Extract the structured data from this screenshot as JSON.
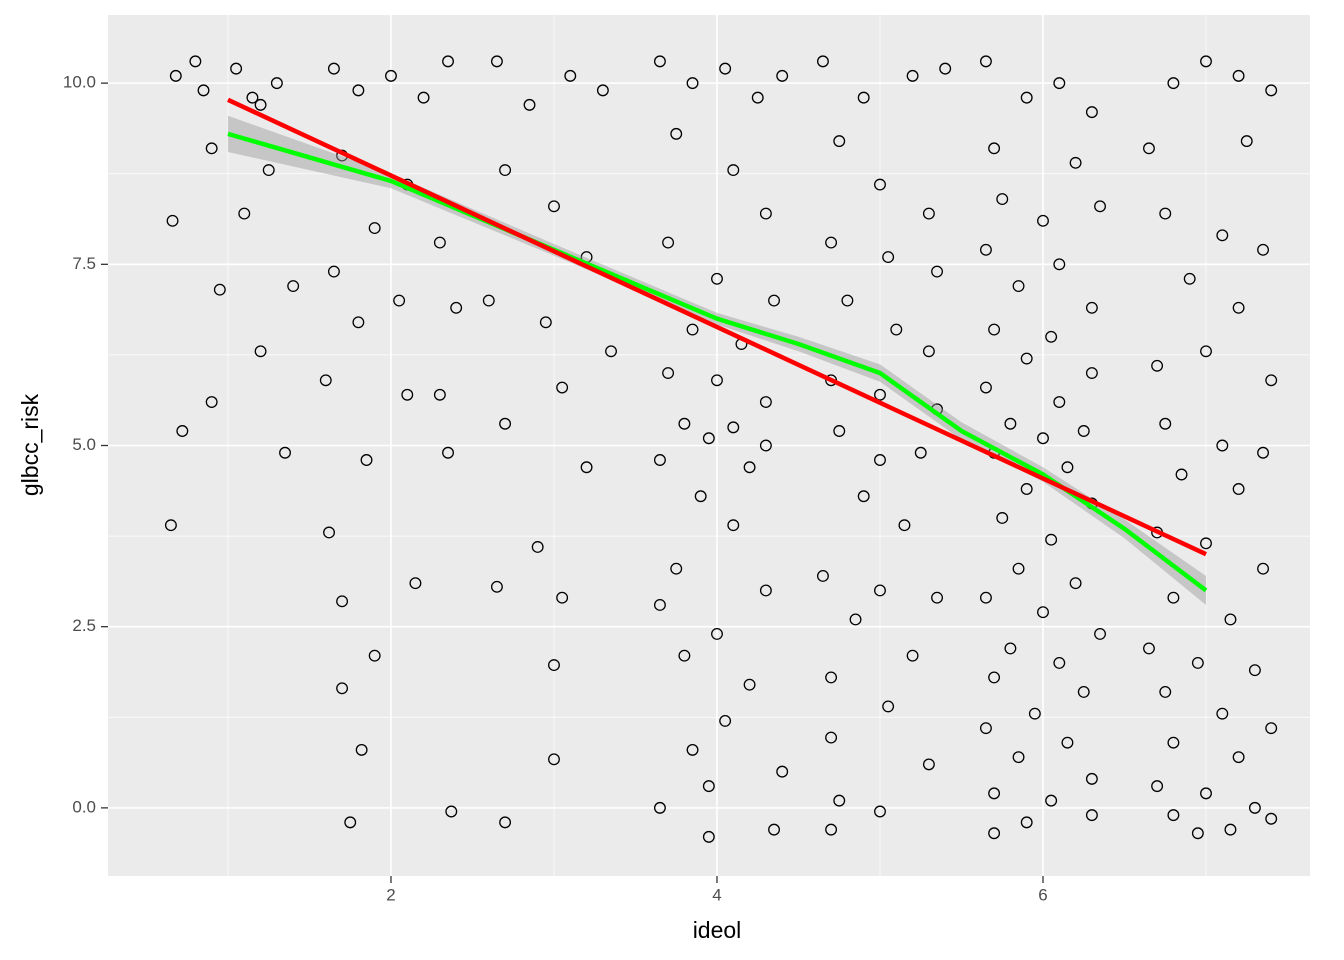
{
  "chart_data": {
    "type": "scatter",
    "x_label": "ideol",
    "y_label": "glbcc_risk",
    "xlim": [
      0.264,
      7.638
    ],
    "ylim": [
      -0.94,
      10.94
    ],
    "xticks": [
      2,
      4,
      6
    ],
    "yticks": [
      {
        "value": 0,
        "label": "0.0"
      },
      2.5,
      {
        "value": 5,
        "label": "5.0"
      },
      7.5,
      {
        "value": 10,
        "label": "10.0"
      }
    ],
    "minor_xticks": [
      1,
      3,
      5,
      7
    ],
    "minor_yticks": [
      1.25,
      3.75,
      6.25,
      8.75
    ],
    "grid": true,
    "point_color": "#000000",
    "points": [
      [
        0.68,
        10.1
      ],
      [
        0.85,
        9.9
      ],
      [
        1.05,
        10.2
      ],
      [
        1.2,
        9.7
      ],
      [
        1.3,
        10.0
      ],
      [
        0.9,
        9.1
      ],
      [
        1.1,
        8.2
      ],
      [
        0.66,
        8.1
      ],
      [
        1.4,
        7.2
      ],
      [
        0.95,
        7.15
      ],
      [
        1.2,
        6.3
      ],
      [
        0.9,
        5.6
      ],
      [
        0.72,
        5.2
      ],
      [
        0.65,
        3.9
      ],
      [
        1.35,
        4.9
      ],
      [
        1.15,
        9.8
      ],
      [
        0.8,
        10.3
      ],
      [
        1.25,
        8.8
      ],
      [
        1.65,
        10.2
      ],
      [
        1.8,
        9.9
      ],
      [
        2.0,
        10.1
      ],
      [
        2.2,
        9.8
      ],
      [
        2.35,
        10.3
      ],
      [
        1.7,
        9.0
      ],
      [
        2.1,
        8.6
      ],
      [
        1.9,
        8.0
      ],
      [
        2.3,
        7.8
      ],
      [
        1.65,
        7.4
      ],
      [
        2.05,
        7.0
      ],
      [
        1.8,
        6.7
      ],
      [
        2.4,
        6.9
      ],
      [
        1.6,
        5.9
      ],
      [
        2.1,
        5.7
      ],
      [
        1.85,
        4.8
      ],
      [
        2.35,
        4.9
      ],
      [
        2.3,
        5.7
      ],
      [
        1.62,
        3.8
      ],
      [
        2.15,
        3.1
      ],
      [
        1.7,
        2.85
      ],
      [
        1.9,
        2.1
      ],
      [
        1.7,
        1.65
      ],
      [
        1.82,
        0.8
      ],
      [
        1.75,
        -0.2
      ],
      [
        2.37,
        -0.05
      ],
      [
        2.65,
        10.3
      ],
      [
        2.85,
        9.7
      ],
      [
        3.1,
        10.1
      ],
      [
        3.3,
        9.9
      ],
      [
        2.7,
        8.8
      ],
      [
        3.0,
        8.3
      ],
      [
        3.2,
        7.6
      ],
      [
        2.6,
        7.0
      ],
      [
        2.95,
        6.7
      ],
      [
        3.35,
        6.3
      ],
      [
        3.05,
        5.8
      ],
      [
        2.7,
        5.3
      ],
      [
        3.2,
        4.7
      ],
      [
        2.9,
        3.6
      ],
      [
        3.05,
        2.9
      ],
      [
        2.65,
        3.05
      ],
      [
        3.0,
        1.97
      ],
      [
        3.0,
        0.67
      ],
      [
        2.7,
        -0.2
      ],
      [
        3.65,
        10.3
      ],
      [
        3.85,
        10.0
      ],
      [
        4.05,
        10.2
      ],
      [
        4.25,
        9.8
      ],
      [
        4.4,
        10.1
      ],
      [
        3.75,
        9.3
      ],
      [
        4.1,
        8.8
      ],
      [
        4.3,
        8.2
      ],
      [
        3.7,
        7.8
      ],
      [
        4.0,
        7.3
      ],
      [
        4.35,
        7.0
      ],
      [
        3.85,
        6.6
      ],
      [
        4.15,
        6.4
      ],
      [
        3.7,
        6.0
      ],
      [
        4.0,
        5.9
      ],
      [
        4.3,
        5.6
      ],
      [
        3.8,
        5.3
      ],
      [
        3.95,
        5.1
      ],
      [
        4.1,
        5.25
      ],
      [
        4.3,
        5.0
      ],
      [
        3.65,
        4.8
      ],
      [
        4.2,
        4.7
      ],
      [
        3.9,
        4.3
      ],
      [
        4.1,
        3.9
      ],
      [
        3.75,
        3.3
      ],
      [
        4.3,
        3.0
      ],
      [
        3.65,
        2.8
      ],
      [
        4.0,
        2.4
      ],
      [
        3.8,
        2.1
      ],
      [
        4.2,
        1.7
      ],
      [
        4.05,
        1.2
      ],
      [
        3.85,
        0.8
      ],
      [
        4.4,
        0.5
      ],
      [
        3.95,
        0.3
      ],
      [
        3.65,
        0.0
      ],
      [
        3.95,
        -0.4
      ],
      [
        4.35,
        -0.3
      ],
      [
        4.65,
        10.3
      ],
      [
        4.9,
        9.8
      ],
      [
        5.2,
        10.1
      ],
      [
        5.4,
        10.2
      ],
      [
        4.75,
        9.2
      ],
      [
        5.0,
        8.6
      ],
      [
        5.3,
        8.2
      ],
      [
        4.7,
        7.8
      ],
      [
        5.05,
        7.6
      ],
      [
        5.35,
        7.4
      ],
      [
        4.8,
        7.0
      ],
      [
        5.1,
        6.6
      ],
      [
        5.3,
        6.3
      ],
      [
        4.7,
        5.9
      ],
      [
        5.0,
        5.7
      ],
      [
        5.35,
        5.5
      ],
      [
        4.75,
        5.2
      ],
      [
        5.0,
        4.8
      ],
      [
        5.25,
        4.9
      ],
      [
        4.9,
        4.3
      ],
      [
        5.15,
        3.9
      ],
      [
        4.65,
        3.2
      ],
      [
        5.0,
        3.0
      ],
      [
        5.35,
        2.9
      ],
      [
        4.85,
        2.6
      ],
      [
        5.2,
        2.1
      ],
      [
        4.7,
        1.8
      ],
      [
        5.05,
        1.4
      ],
      [
        4.7,
        0.97
      ],
      [
        5.3,
        0.6
      ],
      [
        4.75,
        0.1
      ],
      [
        5.0,
        -0.05
      ],
      [
        4.7,
        -0.3
      ],
      [
        5.65,
        10.3
      ],
      [
        5.9,
        9.8
      ],
      [
        6.1,
        10.0
      ],
      [
        6.3,
        9.6
      ],
      [
        5.7,
        9.1
      ],
      [
        6.2,
        8.9
      ],
      [
        5.75,
        8.4
      ],
      [
        6.0,
        8.1
      ],
      [
        6.35,
        8.3
      ],
      [
        5.65,
        7.7
      ],
      [
        6.1,
        7.5
      ],
      [
        5.85,
        7.2
      ],
      [
        6.3,
        6.9
      ],
      [
        5.7,
        6.6
      ],
      [
        6.05,
        6.5
      ],
      [
        5.9,
        6.2
      ],
      [
        6.3,
        6.0
      ],
      [
        5.65,
        5.8
      ],
      [
        6.1,
        5.6
      ],
      [
        5.8,
        5.3
      ],
      [
        6.0,
        5.1
      ],
      [
        6.25,
        5.2
      ],
      [
        5.7,
        4.9
      ],
      [
        6.15,
        4.7
      ],
      [
        5.9,
        4.4
      ],
      [
        6.3,
        4.2
      ],
      [
        5.75,
        4.0
      ],
      [
        6.05,
        3.7
      ],
      [
        5.85,
        3.3
      ],
      [
        6.2,
        3.1
      ],
      [
        5.65,
        2.9
      ],
      [
        6.0,
        2.7
      ],
      [
        6.35,
        2.4
      ],
      [
        5.8,
        2.2
      ],
      [
        6.1,
        2.0
      ],
      [
        5.7,
        1.8
      ],
      [
        6.25,
        1.6
      ],
      [
        5.95,
        1.3
      ],
      [
        5.65,
        1.1
      ],
      [
        6.15,
        0.9
      ],
      [
        5.85,
        0.7
      ],
      [
        6.3,
        0.4
      ],
      [
        5.7,
        0.2
      ],
      [
        6.05,
        0.1
      ],
      [
        5.9,
        -0.2
      ],
      [
        6.3,
        -0.1
      ],
      [
        5.7,
        -0.35
      ],
      [
        6.8,
        10.0
      ],
      [
        7.0,
        10.3
      ],
      [
        7.2,
        10.1
      ],
      [
        7.4,
        9.9
      ],
      [
        6.65,
        9.1
      ],
      [
        7.25,
        9.2
      ],
      [
        6.75,
        8.2
      ],
      [
        7.1,
        7.9
      ],
      [
        7.35,
        7.7
      ],
      [
        6.9,
        7.3
      ],
      [
        7.2,
        6.9
      ],
      [
        6.7,
        6.1
      ],
      [
        7.0,
        6.3
      ],
      [
        7.4,
        5.9
      ],
      [
        6.75,
        5.3
      ],
      [
        7.1,
        5.0
      ],
      [
        7.35,
        4.9
      ],
      [
        6.85,
        4.6
      ],
      [
        7.2,
        4.4
      ],
      [
        6.7,
        3.8
      ],
      [
        7.0,
        3.65
      ],
      [
        7.35,
        3.3
      ],
      [
        6.8,
        2.9
      ],
      [
        7.15,
        2.6
      ],
      [
        6.65,
        2.2
      ],
      [
        6.95,
        2.0
      ],
      [
        7.3,
        1.9
      ],
      [
        6.75,
        1.6
      ],
      [
        7.1,
        1.3
      ],
      [
        7.4,
        1.1
      ],
      [
        6.8,
        0.9
      ],
      [
        7.2,
        0.7
      ],
      [
        6.7,
        0.3
      ],
      [
        7.0,
        0.2
      ],
      [
        7.3,
        0.0
      ],
      [
        6.8,
        -0.1
      ],
      [
        7.15,
        -0.3
      ],
      [
        6.95,
        -0.35
      ],
      [
        7.4,
        -0.15
      ]
    ],
    "lines": [
      {
        "color": "#00ff00",
        "band_color": "#999999",
        "x": [
          1,
          2,
          3,
          4,
          4.5,
          5,
          5.5,
          6,
          6.5,
          7
        ],
        "y": [
          9.3,
          8.65,
          7.7,
          6.75,
          6.4,
          6.0,
          5.2,
          4.6,
          3.85,
          3.0
        ],
        "lower": [
          9.05,
          8.55,
          7.62,
          6.67,
          6.3,
          5.88,
          5.08,
          4.5,
          3.72,
          2.8
        ],
        "upper": [
          9.55,
          8.75,
          7.78,
          6.83,
          6.5,
          6.12,
          5.32,
          4.7,
          3.98,
          3.2
        ]
      },
      {
        "color": "#ff0000",
        "x": [
          1,
          7
        ],
        "y": [
          9.77,
          3.5
        ]
      }
    ]
  }
}
